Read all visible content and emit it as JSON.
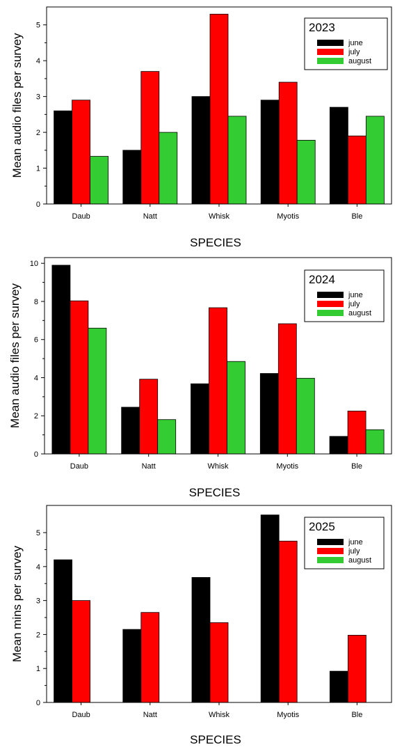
{
  "colors": {
    "june": "#000000",
    "july": "#ff0000",
    "august": "#33cc33"
  },
  "chart_data": [
    {
      "type": "bar",
      "legend_title": "2023",
      "categories": [
        "Daub",
        "Natt",
        "Whisk",
        "Myotis",
        "Ble"
      ],
      "series": [
        {
          "name": "june",
          "values": [
            2.6,
            1.5,
            3.0,
            2.9,
            2.7
          ]
        },
        {
          "name": "july",
          "values": [
            2.9,
            3.7,
            5.3,
            3.4,
            1.9
          ]
        },
        {
          "name": "august",
          "values": [
            1.33,
            2.0,
            2.45,
            1.78,
            2.45
          ]
        }
      ],
      "xlabel": "SPECIES",
      "ylabel": "Mean audio files per survey",
      "ylim": [
        0,
        5.5
      ],
      "yticks": [
        0,
        1,
        2,
        3,
        4,
        5
      ],
      "legend_position": "top-right",
      "grid": false
    },
    {
      "type": "bar",
      "legend_title": "2024",
      "categories": [
        "Daub",
        "Natt",
        "Whisk",
        "Myotis",
        "Ble"
      ],
      "series": [
        {
          "name": "june",
          "values": [
            9.9,
            2.45,
            3.68,
            4.22,
            0.92
          ]
        },
        {
          "name": "july",
          "values": [
            8.03,
            3.92,
            7.67,
            6.83,
            2.25
          ]
        },
        {
          "name": "august",
          "values": [
            6.6,
            1.8,
            4.85,
            3.97,
            1.27
          ]
        }
      ],
      "xlabel": "SPECIES",
      "ylabel": "Mean audio files per survey",
      "ylim": [
        0,
        10.3
      ],
      "yticks": [
        0,
        2,
        4,
        6,
        8,
        10
      ],
      "legend_position": "top-right",
      "grid": false
    },
    {
      "type": "bar",
      "legend_title": "2025",
      "categories": [
        "Daub",
        "Natt",
        "Whisk",
        "Myotis",
        "Ble"
      ],
      "series": [
        {
          "name": "june",
          "values": [
            4.2,
            2.15,
            3.68,
            5.52,
            0.92
          ]
        },
        {
          "name": "july",
          "values": [
            3.0,
            2.65,
            2.35,
            4.75,
            1.98
          ]
        },
        {
          "name": "august",
          "values": [
            0,
            0,
            0,
            0,
            0
          ]
        }
      ],
      "xlabel": "SPECIES",
      "ylabel": "Mean mins per survey",
      "ylim": [
        0,
        5.8
      ],
      "yticks": [
        0,
        1,
        2,
        3,
        4,
        5
      ],
      "legend_position": "top-right",
      "grid": false
    }
  ]
}
